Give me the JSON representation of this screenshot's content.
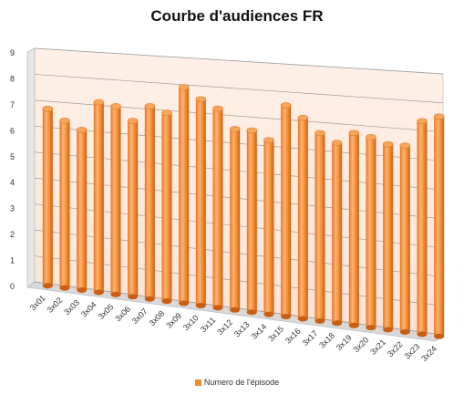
{
  "chart_data": {
    "type": "bar",
    "title": "Courbe d'audiences FR",
    "xlabel": "",
    "ylabel": "",
    "ylim": [
      0,
      9
    ],
    "yticks": [
      0,
      1,
      2,
      3,
      4,
      5,
      6,
      7,
      8,
      9
    ],
    "grid": true,
    "legend_position": "bottom",
    "categories": [
      "3x01",
      "3x02",
      "3x03",
      "3x04",
      "3x05",
      "3x06",
      "3x07",
      "3x08",
      "3x09",
      "3x10",
      "3x11",
      "3x12",
      "3x13",
      "3x14",
      "3x15",
      "3x16",
      "3x17",
      "3x18",
      "3x19",
      "3x20",
      "3x21",
      "3x22",
      "3x23",
      "3x24"
    ],
    "series": [
      {
        "name": "Numero de l'épisode",
        "color": "#F28A2E",
        "values": [
          6.8,
          6.4,
          6.1,
          7.2,
          7.1,
          6.6,
          7.2,
          7.0,
          8.0,
          7.6,
          7.3,
          6.6,
          6.6,
          6.3,
          7.6,
          7.2,
          6.7,
          6.4,
          6.8,
          6.7,
          6.5,
          6.5,
          7.4,
          7.6
        ]
      }
    ]
  }
}
